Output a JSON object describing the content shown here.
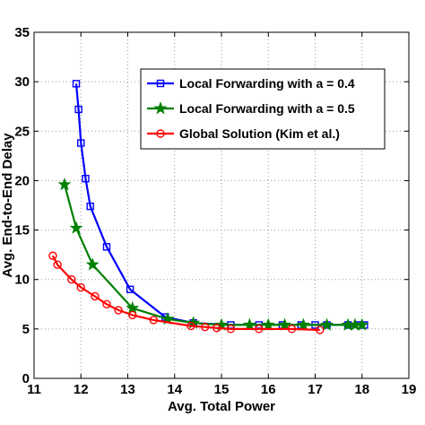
{
  "chart_data": {
    "type": "line",
    "title": "",
    "xlabel": "Avg. Total Power",
    "ylabel": "Avg. End-to-End Delay",
    "xlim": [
      11,
      19
    ],
    "ylim": [
      0,
      35
    ],
    "xticks": [
      11,
      12,
      13,
      14,
      15,
      16,
      17,
      18,
      19
    ],
    "yticks": [
      0,
      5,
      10,
      15,
      20,
      25,
      30,
      35
    ],
    "grid": true,
    "legend_position": "top-right",
    "series": [
      {
        "name": "Local Forwarding with a = 0.4",
        "color": "#0000ff",
        "marker": "square",
        "x": [
          11.9,
          11.95,
          12.0,
          12.1,
          12.2,
          12.55,
          13.05,
          13.8,
          14.4,
          15.2,
          15.8,
          16.3,
          16.7,
          17.0,
          17.25,
          17.7,
          17.95,
          18.05
        ],
        "y": [
          29.8,
          27.2,
          23.8,
          20.2,
          17.4,
          13.3,
          9.0,
          6.2,
          5.6,
          5.4,
          5.4,
          5.4,
          5.4,
          5.4,
          5.4,
          5.4,
          5.4,
          5.4
        ]
      },
      {
        "name": "Local Forwarding with a = 0.5",
        "color": "#008000",
        "marker": "star",
        "x": [
          11.65,
          11.9,
          12.25,
          13.1,
          13.85,
          14.4,
          15.0,
          15.6,
          16.0,
          16.35,
          16.75,
          17.25,
          17.7,
          17.85,
          18.0
        ],
        "y": [
          19.6,
          15.2,
          11.5,
          7.1,
          6.0,
          5.6,
          5.4,
          5.4,
          5.4,
          5.4,
          5.4,
          5.4,
          5.4,
          5.4,
          5.4
        ]
      },
      {
        "name": "Global Solution (Kim et al.)",
        "color": "#ff0000",
        "marker": "circle",
        "x": [
          11.4,
          11.5,
          11.8,
          12.0,
          12.3,
          12.55,
          12.8,
          13.1,
          13.55,
          14.35,
          14.65,
          14.9,
          15.2,
          15.8,
          16.5,
          17.1
        ],
        "y": [
          12.4,
          11.5,
          10.0,
          9.2,
          8.3,
          7.5,
          6.9,
          6.4,
          5.9,
          5.3,
          5.2,
          5.1,
          5.0,
          5.0,
          5.0,
          4.9
        ]
      }
    ]
  }
}
